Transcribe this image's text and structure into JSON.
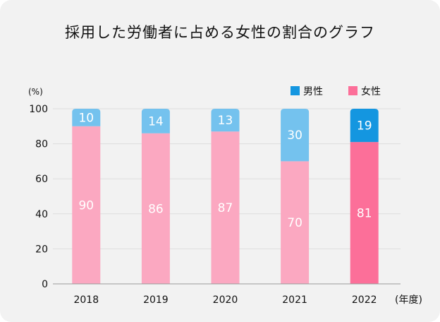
{
  "chart_data": {
    "type": "bar",
    "stacked": true,
    "title": "採用した労働者に占める女性の割合のグラフ",
    "ylabel": "(%)",
    "xlabel": "(年度)",
    "ylim": [
      0,
      100
    ],
    "yticks": [
      0,
      20,
      40,
      60,
      80,
      100
    ],
    "grid": true,
    "legend_position": "top-right",
    "categories": [
      "2018",
      "2019",
      "2020",
      "2021",
      "2022"
    ],
    "series": [
      {
        "name": "女性",
        "values": [
          90,
          86,
          87,
          70,
          81
        ],
        "colors": [
          "#fba8c1",
          "#fba8c1",
          "#fba8c1",
          "#fba8c1",
          "#fc6f99"
        ]
      },
      {
        "name": "男性",
        "values": [
          10,
          14,
          13,
          30,
          19
        ],
        "colors": [
          "#74c2ee",
          "#74c2ee",
          "#74c2ee",
          "#74c2ee",
          "#1496e0"
        ]
      }
    ],
    "legend": [
      {
        "label": "男性",
        "color": "#1496e0"
      },
      {
        "label": "女性",
        "color": "#fc6f99"
      }
    ]
  }
}
